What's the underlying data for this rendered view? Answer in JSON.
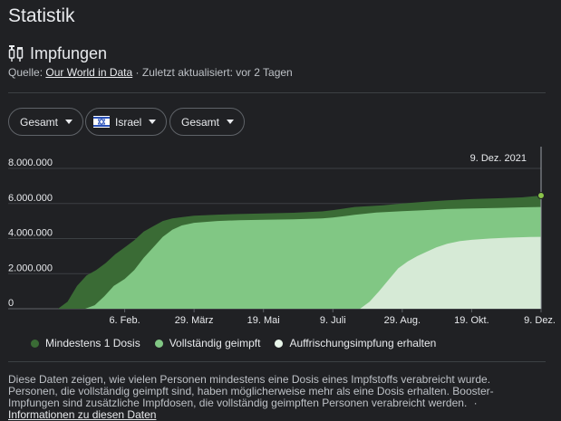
{
  "page_title": "Statistik",
  "section": {
    "title": "Impfungen",
    "icon": "syringe-icon"
  },
  "source": {
    "prefix": "Quelle:",
    "link": "Our World in Data",
    "updated": "· Zuletzt aktualisiert: vor 2 Tagen"
  },
  "filters": {
    "scope_left": "Gesamt",
    "country": "Israel",
    "scope_right": "Gesamt"
  },
  "colors": {
    "background": "#202124",
    "at_least_one": "#3a6b35",
    "fully": "#81c784",
    "booster": "#d6ead6",
    "grid": "#3c4043",
    "axis_text": "#e8eaed"
  },
  "chart_data": {
    "type": "area",
    "title": "",
    "xlabel": "",
    "ylabel": "",
    "ylim": [
      0,
      8000000
    ],
    "yticks": [
      "0",
      "2.000.000",
      "4.000.000",
      "6.000.000",
      "8.000.000"
    ],
    "ytick_values": [
      0,
      2000000,
      4000000,
      6000000,
      8000000
    ],
    "xticks": [
      "6. Feb.",
      "29. März",
      "19. Mai",
      "9. Juli",
      "29. Aug.",
      "19. Okt.",
      "9. Dez."
    ],
    "xtick_dates": [
      "2021-02-06",
      "2021-03-29",
      "2021-05-19",
      "2021-07-09",
      "2021-08-29",
      "2021-10-19",
      "2021-12-09"
    ],
    "xlim": [
      "2020-12-19",
      "2021-12-09"
    ],
    "tooltip": "9. Dez. 2021",
    "legend_position": "bottom",
    "series": [
      {
        "name": "Mindestens 1 Dosis",
        "color": "#3a6b35",
        "points": [
          [
            "2020-12-19",
            0
          ],
          [
            "2020-12-26",
            400000
          ],
          [
            "2021-01-02",
            1300000
          ],
          [
            "2021-01-09",
            1900000
          ],
          [
            "2021-01-16",
            2200000
          ],
          [
            "2021-01-23",
            2600000
          ],
          [
            "2021-01-30",
            3100000
          ],
          [
            "2021-02-06",
            3500000
          ],
          [
            "2021-02-13",
            3900000
          ],
          [
            "2021-02-20",
            4400000
          ],
          [
            "2021-02-27",
            4700000
          ],
          [
            "2021-03-06",
            5000000
          ],
          [
            "2021-03-13",
            5150000
          ],
          [
            "2021-03-20",
            5220000
          ],
          [
            "2021-03-29",
            5300000
          ],
          [
            "2021-04-15",
            5360000
          ],
          [
            "2021-05-01",
            5400000
          ],
          [
            "2021-05-19",
            5430000
          ],
          [
            "2021-06-10",
            5470000
          ],
          [
            "2021-07-01",
            5550000
          ],
          [
            "2021-07-09",
            5620000
          ],
          [
            "2021-07-25",
            5800000
          ],
          [
            "2021-08-15",
            5900000
          ],
          [
            "2021-08-29",
            6000000
          ],
          [
            "2021-09-15",
            6100000
          ],
          [
            "2021-10-01",
            6180000
          ],
          [
            "2021-10-19",
            6250000
          ],
          [
            "2021-11-10",
            6300000
          ],
          [
            "2021-11-25",
            6350000
          ],
          [
            "2021-12-09",
            6450000
          ]
        ]
      },
      {
        "name": "Vollständig geimpft",
        "color": "#81c784",
        "points": [
          [
            "2021-01-08",
            0
          ],
          [
            "2021-01-15",
            200000
          ],
          [
            "2021-01-22",
            700000
          ],
          [
            "2021-01-29",
            1300000
          ],
          [
            "2021-02-06",
            1700000
          ],
          [
            "2021-02-13",
            2200000
          ],
          [
            "2021-02-20",
            2900000
          ],
          [
            "2021-02-27",
            3500000
          ],
          [
            "2021-03-06",
            4100000
          ],
          [
            "2021-03-13",
            4500000
          ],
          [
            "2021-03-20",
            4750000
          ],
          [
            "2021-03-29",
            4900000
          ],
          [
            "2021-04-15",
            5000000
          ],
          [
            "2021-05-01",
            5050000
          ],
          [
            "2021-05-19",
            5070000
          ],
          [
            "2021-06-10",
            5100000
          ],
          [
            "2021-07-01",
            5150000
          ],
          [
            "2021-07-09",
            5200000
          ],
          [
            "2021-07-25",
            5350000
          ],
          [
            "2021-08-10",
            5480000
          ],
          [
            "2021-08-29",
            5560000
          ],
          [
            "2021-09-15",
            5620000
          ],
          [
            "2021-10-01",
            5680000
          ],
          [
            "2021-10-19",
            5720000
          ],
          [
            "2021-11-10",
            5750000
          ],
          [
            "2021-11-25",
            5780000
          ],
          [
            "2021-12-09",
            5800000
          ]
        ]
      },
      {
        "name": "Auffrischungsimpfung erhalten",
        "color": "#d6ead6",
        "points": [
          [
            "2021-07-29",
            0
          ],
          [
            "2021-08-05",
            400000
          ],
          [
            "2021-08-12",
            1000000
          ],
          [
            "2021-08-19",
            1650000
          ],
          [
            "2021-08-26",
            2300000
          ],
          [
            "2021-09-02",
            2700000
          ],
          [
            "2021-09-09",
            3000000
          ],
          [
            "2021-09-16",
            3250000
          ],
          [
            "2021-09-23",
            3500000
          ],
          [
            "2021-10-01",
            3700000
          ],
          [
            "2021-10-10",
            3850000
          ],
          [
            "2021-10-19",
            3930000
          ],
          [
            "2021-11-01",
            4000000
          ],
          [
            "2021-11-15",
            4050000
          ],
          [
            "2021-12-01",
            4090000
          ],
          [
            "2021-12-09",
            4100000
          ]
        ]
      }
    ]
  },
  "footnote": {
    "text": "Diese Daten zeigen, wie vielen Personen mindestens eine Dosis eines Impfstoffs verabreicht wurde. Personen, die vollständig geimpft sind, haben möglicherweise mehr als eine Dosis erhalten. Booster-Impfungen sind zusätzliche Impfdosen, die vollständig geimpften Personen verabreicht werden.",
    "separator": "·",
    "link": "Informationen zu diesen Daten"
  }
}
